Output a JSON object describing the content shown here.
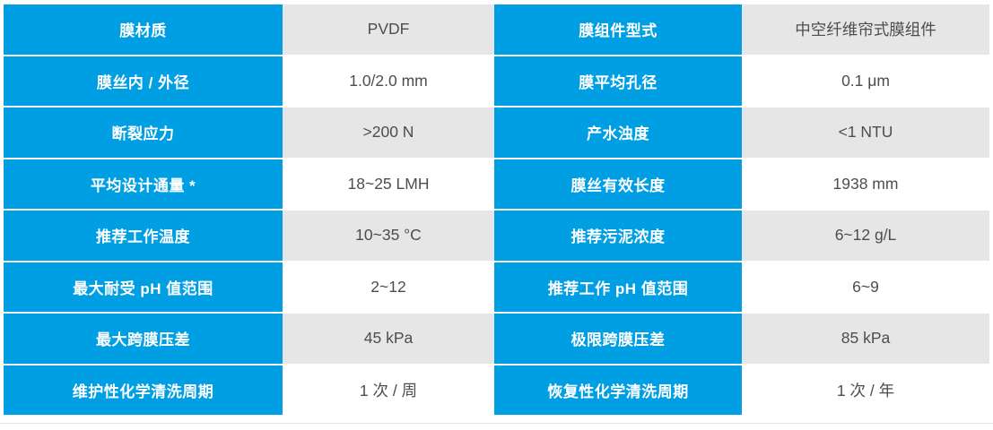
{
  "colors": {
    "header_blue": "#009FE3",
    "row_alt_gray": "#E6E6E6",
    "row_white": "#FFFFFF",
    "label_text": "#FFFFFF",
    "value_text": "#4D4D4D"
  },
  "chart_data": {
    "type": "table",
    "description": "Membrane module specification table: alternating blue parameter-name cells (white bold text) and value cells (gray/white alternating rows), two parameter/value column pairs, 8 rows",
    "rows": [
      [
        "膜材质",
        "PVDF",
        "膜组件型式",
        "中空纤维帘式膜组件"
      ],
      [
        "膜丝内 / 外径",
        "1.0/2.0 mm",
        "膜平均孔径",
        "0.1 μm"
      ],
      [
        "断裂应力",
        ">200 N",
        "产水浊度",
        "<1 NTU"
      ],
      [
        "平均设计通量 *",
        "18~25 LMH",
        "膜丝有效长度",
        "1938 mm"
      ],
      [
        "推荐工作温度",
        "10~35 °C",
        "推荐污泥浓度",
        "6~12 g/L"
      ],
      [
        "最大耐受 pH 值范围",
        "2~12",
        "推荐工作 pH 值范围",
        "6~9"
      ],
      [
        "最大跨膜压差",
        "45 kPa",
        "极限跨膜压差",
        "85 kPa"
      ],
      [
        "维护性化学清洗周期",
        "1 次 / 周",
        "恢复性化学清洗周期",
        "1 次 / 年"
      ]
    ]
  }
}
